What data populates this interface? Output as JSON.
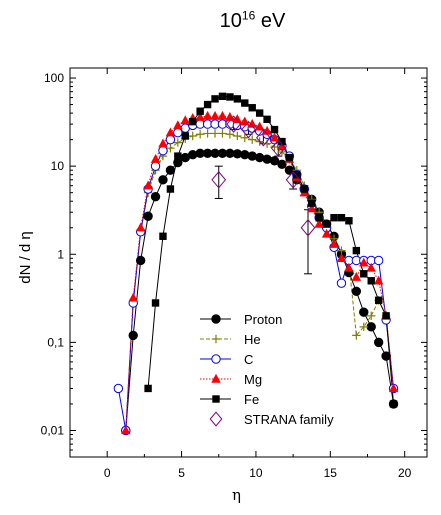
{
  "chart_data": {
    "type": "line",
    "title_base": "10",
    "title_exp": "16",
    "title_unit": " eV",
    "xlabel": "η",
    "ylabel": "dN / d η",
    "xlim": [
      -2.5,
      21.5
    ],
    "ylim": [
      0.005,
      130
    ],
    "yscale": "log",
    "x_ticks": [
      0,
      5,
      10,
      15,
      20
    ],
    "x_tick_labels": [
      "0",
      "5",
      "10",
      "15",
      "20"
    ],
    "y_ticks": [
      0.01,
      0.1,
      1,
      10,
      100
    ],
    "y_tick_labels": [
      "0,01",
      "0,1",
      "1",
      "10",
      "100"
    ],
    "legend_position": "bottom-center",
    "series": [
      {
        "name": "Proton",
        "color": "#000000",
        "marker": "circle-filled",
        "line": "solid",
        "x": [
          1.25,
          1.75,
          2.25,
          2.75,
          3.25,
          3.75,
          4.25,
          4.75,
          5.25,
          5.75,
          6.25,
          6.75,
          7.25,
          7.75,
          8.25,
          8.75,
          9.25,
          9.75,
          10.25,
          10.75,
          11.25,
          11.75,
          12.25,
          12.75,
          13.25,
          13.75,
          14.25,
          14.75,
          15.25,
          15.75,
          16.25,
          16.75,
          17.25,
          17.75,
          18.25,
          18.75,
          19.25
        ],
        "y": [
          0.01,
          0.12,
          0.85,
          2.7,
          4.5,
          7.0,
          9.0,
          11.0,
          12.5,
          13.5,
          14.0,
          14.0,
          14.0,
          14.0,
          14.0,
          13.8,
          13.5,
          13.0,
          12.5,
          12.0,
          11.5,
          10.5,
          9.0,
          7.0,
          5.5,
          4.2,
          3.0,
          2.2,
          1.6,
          1.0,
          0.62,
          0.38,
          0.22,
          0.15,
          0.1,
          0.07,
          0.02
        ]
      },
      {
        "name": "He",
        "color": "#808000",
        "marker": "plus",
        "line": "dashed",
        "x": [
          1.25,
          1.75,
          2.25,
          2.75,
          3.25,
          3.75,
          4.25,
          4.75,
          5.25,
          5.75,
          6.25,
          6.75,
          7.25,
          7.75,
          8.25,
          8.75,
          9.25,
          9.75,
          10.25,
          10.75,
          11.25,
          11.75,
          12.25,
          12.75,
          13.25,
          13.75,
          14.25,
          14.75,
          15.25,
          15.75,
          16.25,
          16.75,
          17.25,
          17.75,
          18.25,
          18.75,
          19.25
        ],
        "y": [
          0.01,
          0.3,
          1.8,
          5.0,
          9.0,
          13.0,
          16.0,
          18.5,
          20.5,
          22.0,
          23.0,
          23.5,
          23.5,
          23.5,
          23.0,
          22.0,
          21.0,
          20.0,
          19.0,
          18.0,
          16.5,
          14.5,
          12.0,
          9.0,
          6.0,
          4.2,
          3.0,
          2.1,
          1.5,
          1.1,
          0.8,
          0.12,
          0.15,
          0.2,
          0.3,
          0.2,
          0.03
        ]
      },
      {
        "name": "C",
        "color": "#0000ff",
        "marker": "circle-open",
        "line": "solid",
        "x": [
          0.75,
          1.25,
          1.75,
          2.25,
          2.75,
          3.25,
          3.75,
          4.25,
          4.75,
          5.25,
          5.75,
          6.25,
          6.75,
          7.25,
          7.75,
          8.25,
          8.75,
          9.25,
          9.75,
          10.25,
          10.75,
          11.25,
          11.75,
          12.25,
          12.75,
          13.25,
          13.75,
          14.25,
          14.75,
          15.25,
          15.75,
          16.25,
          16.75,
          17.25,
          17.75,
          18.25,
          18.75,
          19.25
        ],
        "y": [
          0.03,
          0.01,
          0.28,
          1.8,
          5.5,
          10.0,
          15.0,
          20.0,
          24.0,
          27.0,
          29.0,
          30.0,
          30.0,
          30.0,
          30.0,
          30.0,
          29.0,
          28.0,
          27.0,
          25.0,
          23.0,
          20.0,
          17.0,
          13.0,
          8.0,
          5.5,
          3.5,
          2.6,
          2.0,
          1.2,
          0.47,
          0.85,
          0.85,
          0.85,
          0.85,
          0.85,
          0.18,
          0.03
        ]
      },
      {
        "name": "Mg",
        "color": "#ff0000",
        "marker": "triangle-filled",
        "line": "dotted",
        "x": [
          1.25,
          1.75,
          2.25,
          2.75,
          3.25,
          3.75,
          4.25,
          4.75,
          5.25,
          5.75,
          6.25,
          6.75,
          7.25,
          7.75,
          8.25,
          8.75,
          9.25,
          9.75,
          10.25,
          10.75,
          11.25,
          11.75,
          12.25,
          12.75,
          13.25,
          13.75,
          14.25,
          14.75,
          15.25,
          15.75,
          16.25,
          16.75,
          17.25,
          17.75,
          18.25,
          18.75,
          19.25
        ],
        "y": [
          0.01,
          0.32,
          2.0,
          6.0,
          12.0,
          18.0,
          24.0,
          29.0,
          33.0,
          35.0,
          36.0,
          37.0,
          37.0,
          37.0,
          36.0,
          34.0,
          32.0,
          30.0,
          28.0,
          25.0,
          21.0,
          17.0,
          12.0,
          7.5,
          5.0,
          3.3,
          2.2,
          1.7,
          1.3,
          0.9,
          0.7,
          0.55,
          0.8,
          0.7,
          0.5,
          0.2,
          0.03
        ]
      },
      {
        "name": "Fe",
        "color": "#000000",
        "marker": "square-filled",
        "line": "solid",
        "x": [
          2.75,
          3.25,
          3.75,
          4.25,
          4.75,
          5.25,
          5.75,
          6.25,
          6.75,
          7.25,
          7.75,
          8.25,
          8.75,
          9.25,
          9.75,
          10.25,
          10.75,
          11.25,
          11.75,
          12.25,
          12.75,
          13.25,
          13.75,
          14.25,
          14.75,
          15.25,
          15.75,
          16.25,
          16.75,
          17.25,
          17.75,
          18.25,
          18.75,
          19.25
        ],
        "y": [
          0.03,
          0.28,
          1.6,
          5.5,
          13.0,
          22.0,
          32.0,
          42.0,
          50.0,
          58.0,
          62.0,
          61.0,
          58.0,
          52.0,
          46.0,
          40.0,
          34.0,
          26.0,
          19.0,
          12.5,
          8.0,
          5.5,
          3.8,
          2.6,
          2.2,
          2.6,
          2.6,
          2.4,
          1.1,
          0.6,
          0.5,
          0.3,
          0.2,
          0.02
        ]
      },
      {
        "name": "STRANA family",
        "color": "#800080",
        "marker": "diamond-open",
        "line": "none",
        "x": [
          7.5,
          8.5,
          9.5,
          10.5,
          11.5,
          12.5,
          13.5
        ],
        "y": [
          7.0,
          30.0,
          26.0,
          21.0,
          16.0,
          7.0,
          2.0
        ],
        "err_low": [
          4.3,
          26.0,
          23.0,
          18.0,
          13.0,
          5.5,
          0.6
        ],
        "err_high": [
          10.0,
          34.0,
          29.0,
          24.0,
          19.0,
          9.0,
          3.2
        ]
      }
    ]
  }
}
